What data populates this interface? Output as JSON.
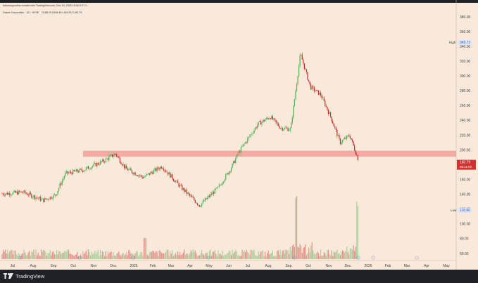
{
  "header": {
    "author_line": "balancegurufina created with TradingView.com, Dec 15, 2025 18:48 UTC+1",
    "symbol_name": "Oracle Corporation · 1D · NYSE",
    "ohlc": "O188.29 H188.45 L182.83 C183.79"
  },
  "footer": {
    "brand": "TradingView"
  },
  "price_axis": {
    "ticks": [
      "380.00",
      "360.00",
      "340.00",
      "320.00",
      "300.00",
      "280.00",
      "260.00",
      "240.00",
      "220.00",
      "200.00",
      "180.00",
      "160.00",
      "140.00",
      "120.00",
      "100.00",
      "80.00",
      "60.00"
    ],
    "high_label": "High",
    "high_value": "345.72",
    "low_label": "Low",
    "low_value": "118.86",
    "last_price": "183.79",
    "countdown": "05:11:00"
  },
  "time_axis": {
    "ticks": [
      "Jul",
      "Aug",
      "Sep",
      "Oct",
      "Nov",
      "Dec",
      "2025",
      "Feb",
      "Mar",
      "Apr",
      "May",
      "Jun",
      "Jul",
      "Aug",
      "Sep",
      "Oct",
      "Nov",
      "Dec",
      "2026",
      "Feb",
      "Mar",
      "Apr",
      "May"
    ]
  },
  "colors": {
    "up": "#4caf50",
    "down": "#c62828",
    "zone": "#f4a9a2",
    "last_price_bg": "#d32f2f",
    "background": "#f8e9db"
  },
  "chart_data": {
    "type": "candlestick",
    "x_label": "",
    "y_label": "",
    "y_range": [
      55,
      390
    ],
    "support_zone": [
      191,
      199
    ],
    "high": 345.72,
    "low": 118.86,
    "last": 183.79,
    "series": [
      {
        "points": [
          [
            "Jun 2024",
            141
          ],
          [
            "Jul 2024",
            143
          ],
          [
            "Aug 2024",
            132
          ],
          [
            "Sep 2024",
            139
          ],
          [
            "Sep 2024",
            168
          ],
          [
            "Oct 2024",
            173
          ],
          [
            "Nov 2024",
            185
          ],
          [
            "Dec 2024",
            195
          ],
          [
            "Dec 2024",
            175
          ],
          [
            "Jan 2025",
            163
          ],
          [
            "Feb 2025",
            178
          ],
          [
            "Mar 2025",
            150
          ],
          [
            "Apr 2025",
            125
          ],
          [
            "May 2025",
            150
          ],
          [
            "Jun 2025",
            175
          ],
          [
            "Jun 2025",
            200
          ],
          [
            "Jul 2025",
            235
          ],
          [
            "Aug 2025",
            245
          ],
          [
            "Aug 2025",
            230
          ],
          [
            "Sep 2025",
            228
          ],
          [
            "Sep 2025",
            330
          ],
          [
            "Oct 2025",
            285
          ],
          [
            "Oct 2025",
            275
          ],
          [
            "Nov 2025",
            245
          ],
          [
            "Nov 2025",
            210
          ],
          [
            "Dec 2025",
            220
          ],
          [
            "Dec 2025",
            183.79
          ]
        ]
      }
    ]
  }
}
